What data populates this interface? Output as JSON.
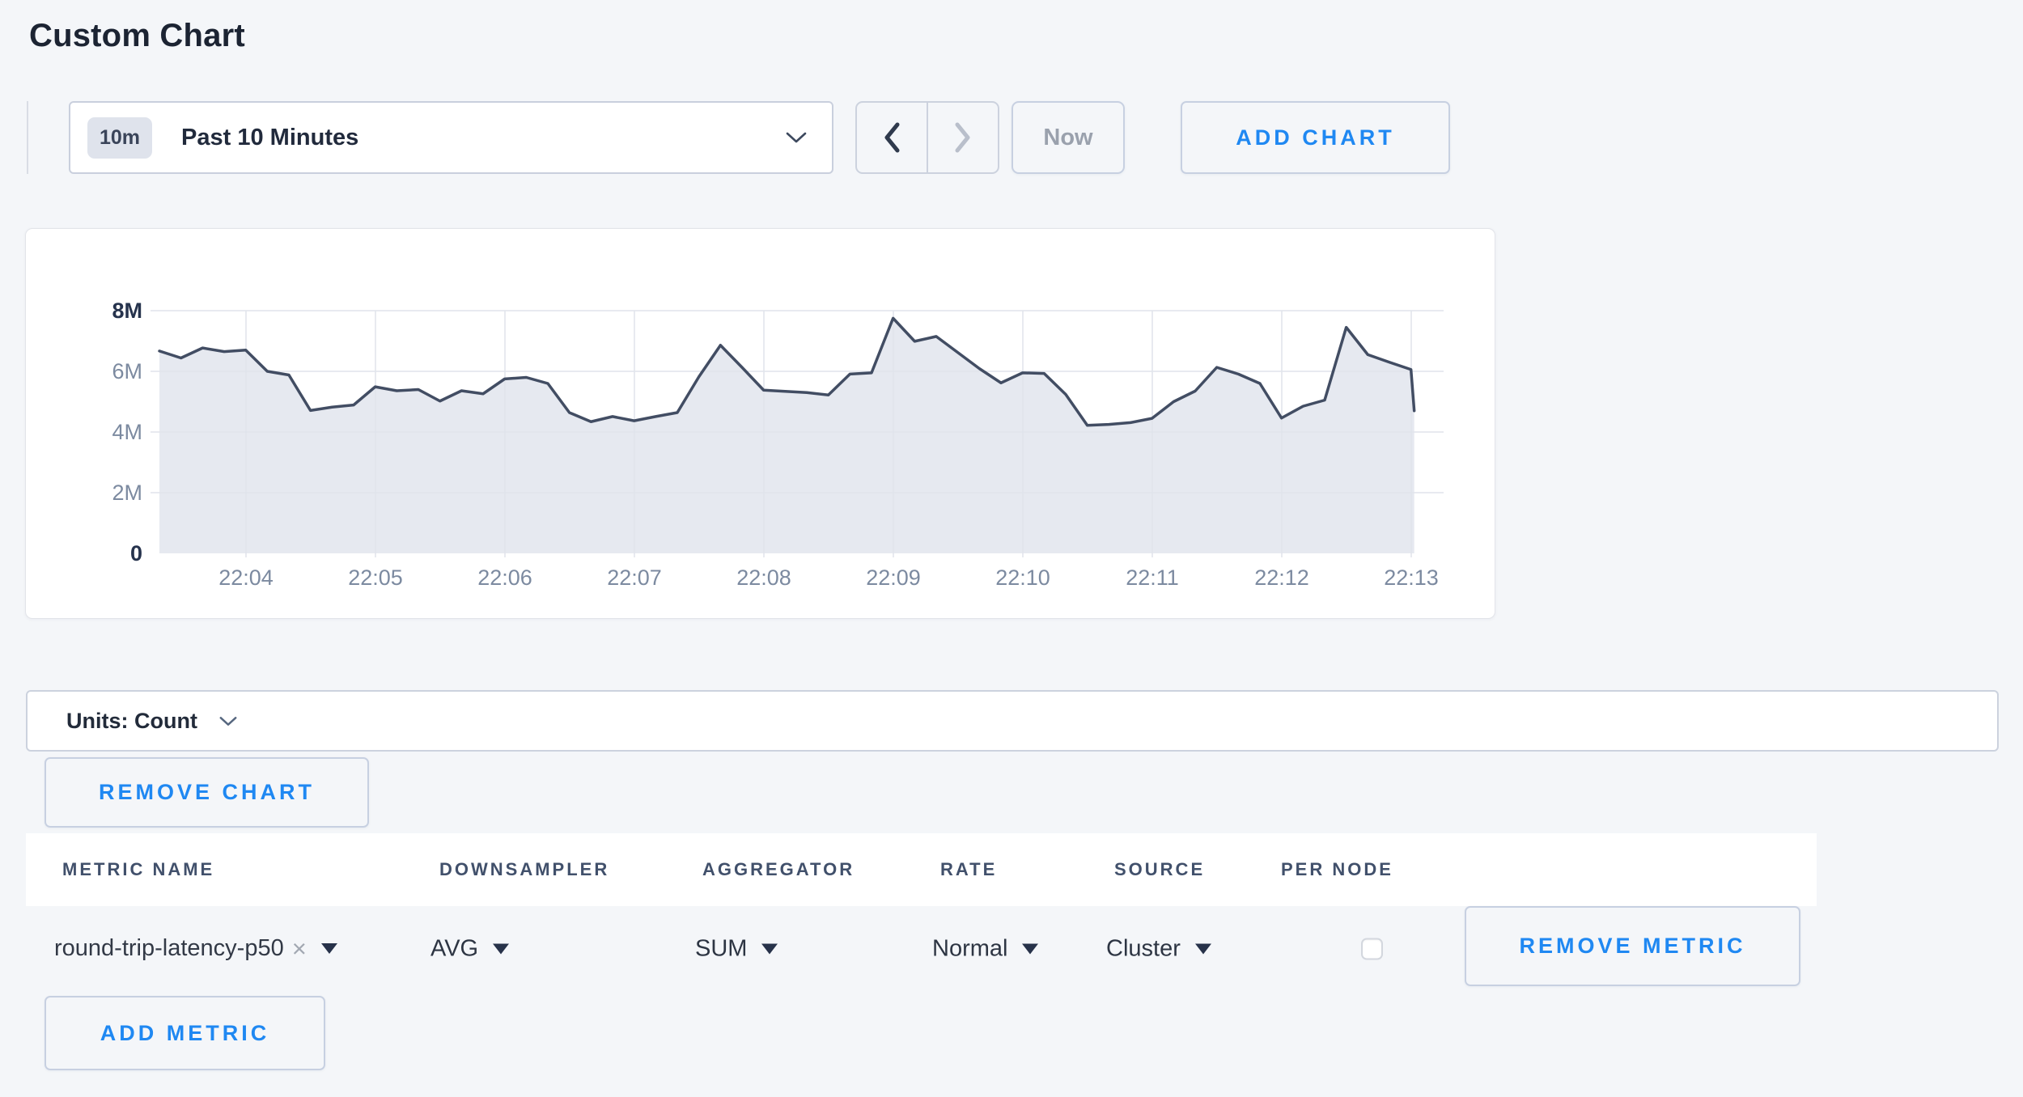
{
  "page": {
    "title": "Custom Chart",
    "background": "#f4f6f9",
    "accent_blue": "#1f88f2"
  },
  "toolbar": {
    "time_window_badge": "10m",
    "time_range_label": "Past 10 Minutes",
    "now_label": "Now",
    "add_chart_label": "ADD CHART"
  },
  "icons": {
    "clear_metric": "×"
  },
  "chart_data": {
    "type": "area",
    "title": "",
    "xlabel": "",
    "ylabel": "",
    "unit": "count",
    "series": [
      {
        "name": "round-trip-latency-p50",
        "values_millions": [
          6.67,
          6.44,
          6.77,
          6.65,
          6.7,
          6.0,
          5.88,
          4.71,
          4.82,
          4.89,
          5.49,
          5.36,
          5.4,
          5.02,
          5.36,
          5.26,
          5.75,
          5.8,
          5.6,
          4.64,
          4.34,
          4.51,
          4.37,
          4.51,
          4.64,
          5.82,
          6.86,
          6.13,
          5.38,
          5.34,
          5.3,
          5.22,
          5.91,
          5.95,
          7.75,
          6.99,
          7.15,
          6.62,
          6.09,
          5.62,
          5.95,
          5.93,
          5.24,
          4.22,
          4.25,
          4.31,
          4.45,
          5.0,
          5.35,
          6.13,
          5.91,
          5.6,
          4.46,
          4.85,
          5.05,
          7.45,
          6.55,
          6.3,
          6.06,
          4.7
        ]
      }
    ],
    "start_time": "22:03:20",
    "interval_seconds": 10,
    "x_tick_labels": [
      "22:04",
      "22:05",
      "22:06",
      "22:07",
      "22:08",
      "22:09",
      "22:10",
      "22:11",
      "22:12",
      "22:13"
    ],
    "first_tick_point_index": 4,
    "points_per_tick": 6,
    "last_segment_fraction": 0.15,
    "y_tick_labels": [
      "0",
      "2M",
      "4M",
      "6M",
      "8M"
    ],
    "ylim": [
      0,
      8000000
    ],
    "grid": true,
    "legend": "none",
    "line_color": "#424d63",
    "fill_color": "rgba(227,230,238,0.88)",
    "grid_color": "#e0e4eb",
    "axis_label_color": "#7c8aa0",
    "axis_label_bold_color": "#26334d"
  },
  "units_bar": {
    "label": "Units: Count"
  },
  "chart_actions": {
    "remove_chart_label": "REMOVE CHART",
    "add_metric_label": "ADD METRIC"
  },
  "metrics_table": {
    "columns": [
      "METRIC NAME",
      "DOWNSAMPLER",
      "AGGREGATOR",
      "RATE",
      "SOURCE",
      "PER NODE"
    ],
    "rows": [
      {
        "metric_name": "round-trip-latency-p50",
        "downsampler": "AVG",
        "aggregator": "SUM",
        "rate": "Normal",
        "source": "Cluster",
        "per_node_checked": false,
        "remove_label": "REMOVE METRIC"
      }
    ]
  }
}
